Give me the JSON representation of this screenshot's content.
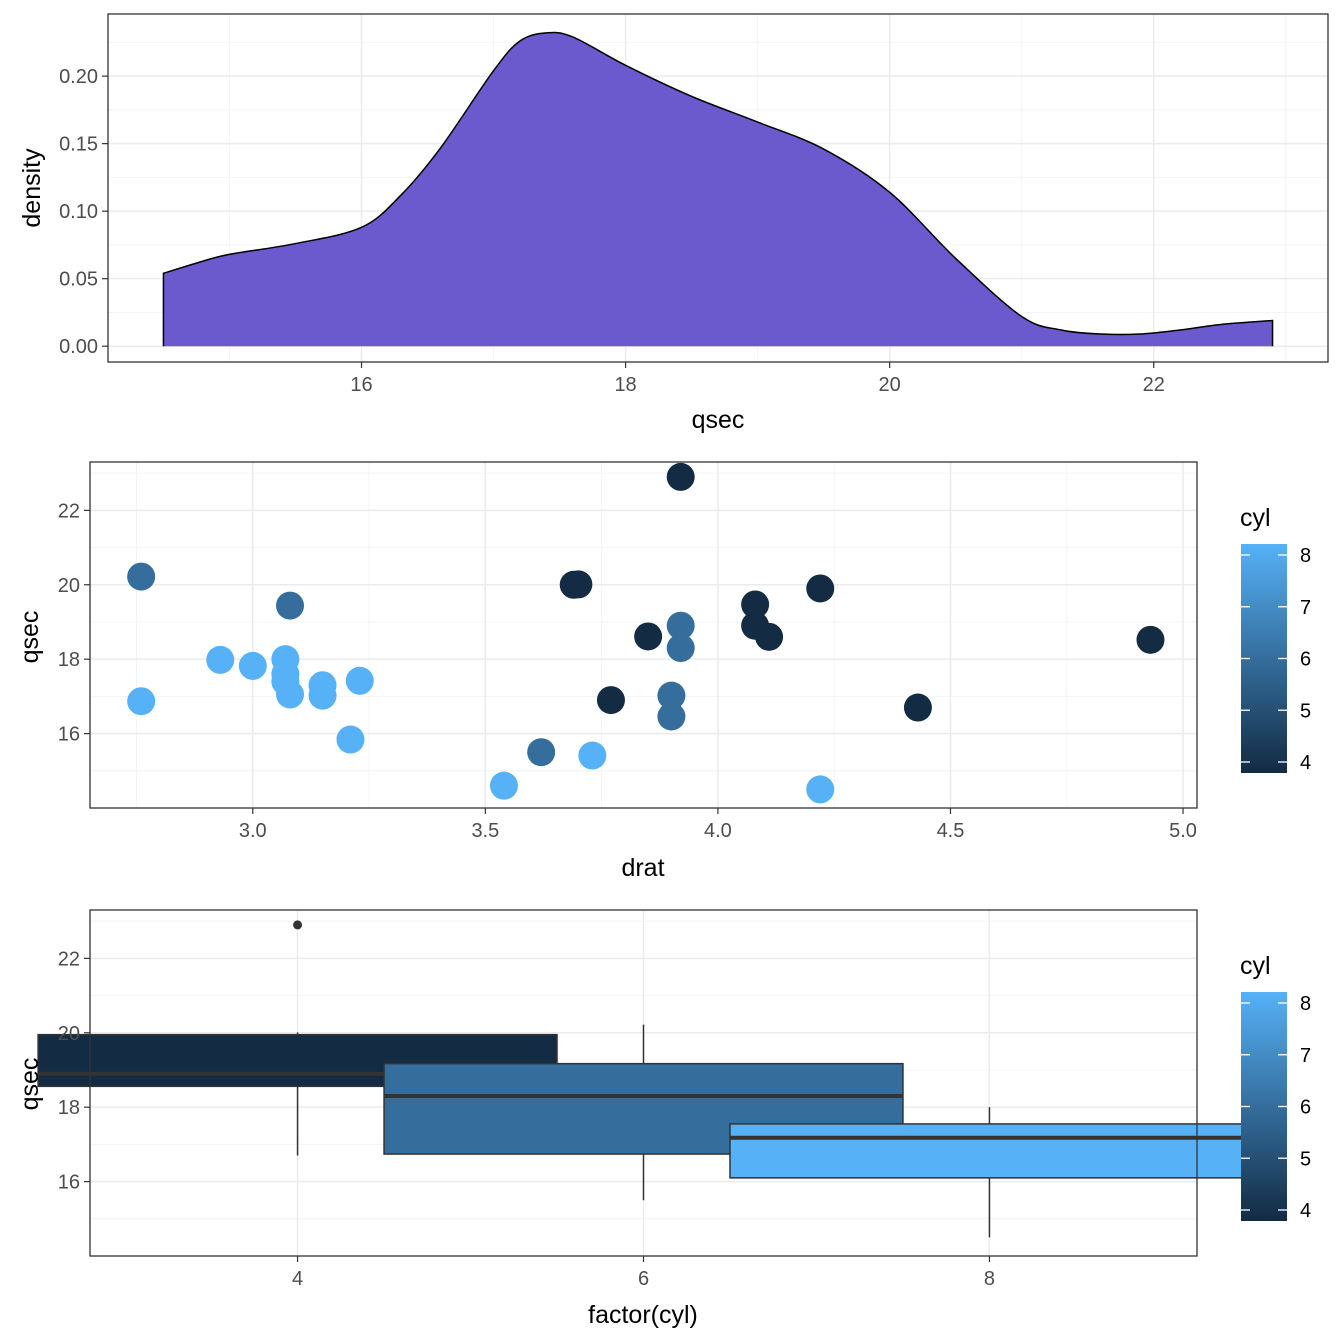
{
  "chart_data": [
    {
      "type": "area",
      "subtype": "density",
      "xlabel": "qsec",
      "ylabel": "density",
      "xlim": [
        14.08,
        23.32
      ],
      "ylim": [
        -0.0117,
        0.246
      ],
      "x_ticks": [
        16,
        18,
        20,
        22
      ],
      "x_tick_labels": [
        "16",
        "18",
        "20",
        "22"
      ],
      "y_ticks": [
        0,
        0.05,
        0.1,
        0.15,
        0.2
      ],
      "y_tick_labels": [
        "0.00",
        "0.05",
        "0.10",
        "0.15",
        "0.20"
      ],
      "fill_color": "#6A5ACD",
      "line_color": "#000000",
      "grid": true,
      "x": [
        14.5,
        14.8,
        15.0,
        15.5,
        16.0,
        16.3,
        16.6,
        17.0,
        17.2,
        17.4,
        17.6,
        18.0,
        18.5,
        19.0,
        19.5,
        20.0,
        20.5,
        21.0,
        21.3,
        21.6,
        21.9,
        22.2,
        22.5,
        22.9
      ],
      "y": [
        0.054,
        0.063,
        0.068,
        0.076,
        0.088,
        0.112,
        0.147,
        0.204,
        0.226,
        0.232,
        0.229,
        0.208,
        0.185,
        0.166,
        0.146,
        0.114,
        0.065,
        0.022,
        0.012,
        0.009,
        0.009,
        0.012,
        0.016,
        0.019
      ]
    },
    {
      "type": "scatter",
      "xlabel": "drat",
      "ylabel": "qsec",
      "xlim": [
        2.65,
        5.03
      ],
      "ylim": [
        14.0,
        23.3
      ],
      "x_ticks": [
        3.0,
        3.5,
        4.0,
        4.5,
        5.0
      ],
      "x_tick_labels": [
        "3.0",
        "3.5",
        "4.0",
        "4.5",
        "5.0"
      ],
      "y_ticks": [
        16,
        18,
        20,
        22
      ],
      "y_tick_labels": [
        "16",
        "18",
        "20",
        "22"
      ],
      "color_by": "cyl",
      "grid": true,
      "points": [
        {
          "x": 3.9,
          "y": 16.46,
          "cyl": 6
        },
        {
          "x": 3.9,
          "y": 17.02,
          "cyl": 6
        },
        {
          "x": 3.85,
          "y": 18.61,
          "cyl": 4
        },
        {
          "x": 3.08,
          "y": 19.44,
          "cyl": 6
        },
        {
          "x": 3.15,
          "y": 17.02,
          "cyl": 8
        },
        {
          "x": 2.76,
          "y": 20.22,
          "cyl": 6
        },
        {
          "x": 3.21,
          "y": 15.84,
          "cyl": 8
        },
        {
          "x": 3.69,
          "y": 20.0,
          "cyl": 4
        },
        {
          "x": 3.92,
          "y": 22.9,
          "cyl": 4
        },
        {
          "x": 3.92,
          "y": 18.3,
          "cyl": 6
        },
        {
          "x": 3.92,
          "y": 18.9,
          "cyl": 6
        },
        {
          "x": 3.07,
          "y": 17.4,
          "cyl": 8
        },
        {
          "x": 3.07,
          "y": 17.6,
          "cyl": 8
        },
        {
          "x": 3.07,
          "y": 18.0,
          "cyl": 8
        },
        {
          "x": 2.93,
          "y": 17.98,
          "cyl": 8
        },
        {
          "x": 3.0,
          "y": 17.82,
          "cyl": 8
        },
        {
          "x": 3.23,
          "y": 17.42,
          "cyl": 8
        },
        {
          "x": 4.08,
          "y": 19.47,
          "cyl": 4
        },
        {
          "x": 4.93,
          "y": 18.52,
          "cyl": 4
        },
        {
          "x": 4.22,
          "y": 19.9,
          "cyl": 4
        },
        {
          "x": 3.7,
          "y": 20.01,
          "cyl": 4
        },
        {
          "x": 2.76,
          "y": 16.87,
          "cyl": 8
        },
        {
          "x": 3.15,
          "y": 17.3,
          "cyl": 8
        },
        {
          "x": 3.73,
          "y": 15.41,
          "cyl": 8
        },
        {
          "x": 3.08,
          "y": 17.05,
          "cyl": 8
        },
        {
          "x": 4.08,
          "y": 18.9,
          "cyl": 4
        },
        {
          "x": 4.43,
          "y": 16.7,
          "cyl": 4
        },
        {
          "x": 3.77,
          "y": 16.9,
          "cyl": 4
        },
        {
          "x": 4.22,
          "y": 14.5,
          "cyl": 8
        },
        {
          "x": 3.62,
          "y": 15.5,
          "cyl": 6
        },
        {
          "x": 3.54,
          "y": 14.6,
          "cyl": 8
        },
        {
          "x": 4.11,
          "y": 18.6,
          "cyl": 4
        }
      ],
      "legend": {
        "title": "cyl",
        "min": 4,
        "max": 8,
        "labels": [
          "4",
          "5",
          "6",
          "7",
          "8"
        ],
        "low_color": "#132B43",
        "high_color": "#56B1F7",
        "placement": "right"
      }
    },
    {
      "type": "box",
      "xlabel": "factor(cyl)",
      "ylabel": "qsec",
      "categories": [
        "4",
        "6",
        "8"
      ],
      "ylim": [
        14.0,
        23.3
      ],
      "y_ticks": [
        16,
        18,
        20,
        22
      ],
      "y_tick_labels": [
        "16",
        "18",
        "20",
        "22"
      ],
      "fill_by": "cyl",
      "grid": true,
      "boxes": [
        {
          "category": "4",
          "cyl": 4,
          "lower_whisker": 16.7,
          "q1": 18.56,
          "median": 18.9,
          "q3": 19.95,
          "upper_whisker": 20.01,
          "outliers": [
            22.9
          ]
        },
        {
          "category": "6",
          "cyl": 6,
          "lower_whisker": 15.5,
          "q1": 16.74,
          "median": 18.3,
          "q3": 19.17,
          "upper_whisker": 20.22,
          "outliers": []
        },
        {
          "category": "8",
          "cyl": 8,
          "lower_whisker": 14.5,
          "q1": 16.1,
          "median": 17.18,
          "q3": 17.55,
          "upper_whisker": 18.0,
          "outliers": []
        }
      ],
      "legend": {
        "title": "cyl",
        "min": 4,
        "max": 8,
        "labels": [
          "4",
          "5",
          "6",
          "7",
          "8"
        ],
        "low_color": "#132B43",
        "high_color": "#56B1F7",
        "placement": "right"
      }
    }
  ]
}
